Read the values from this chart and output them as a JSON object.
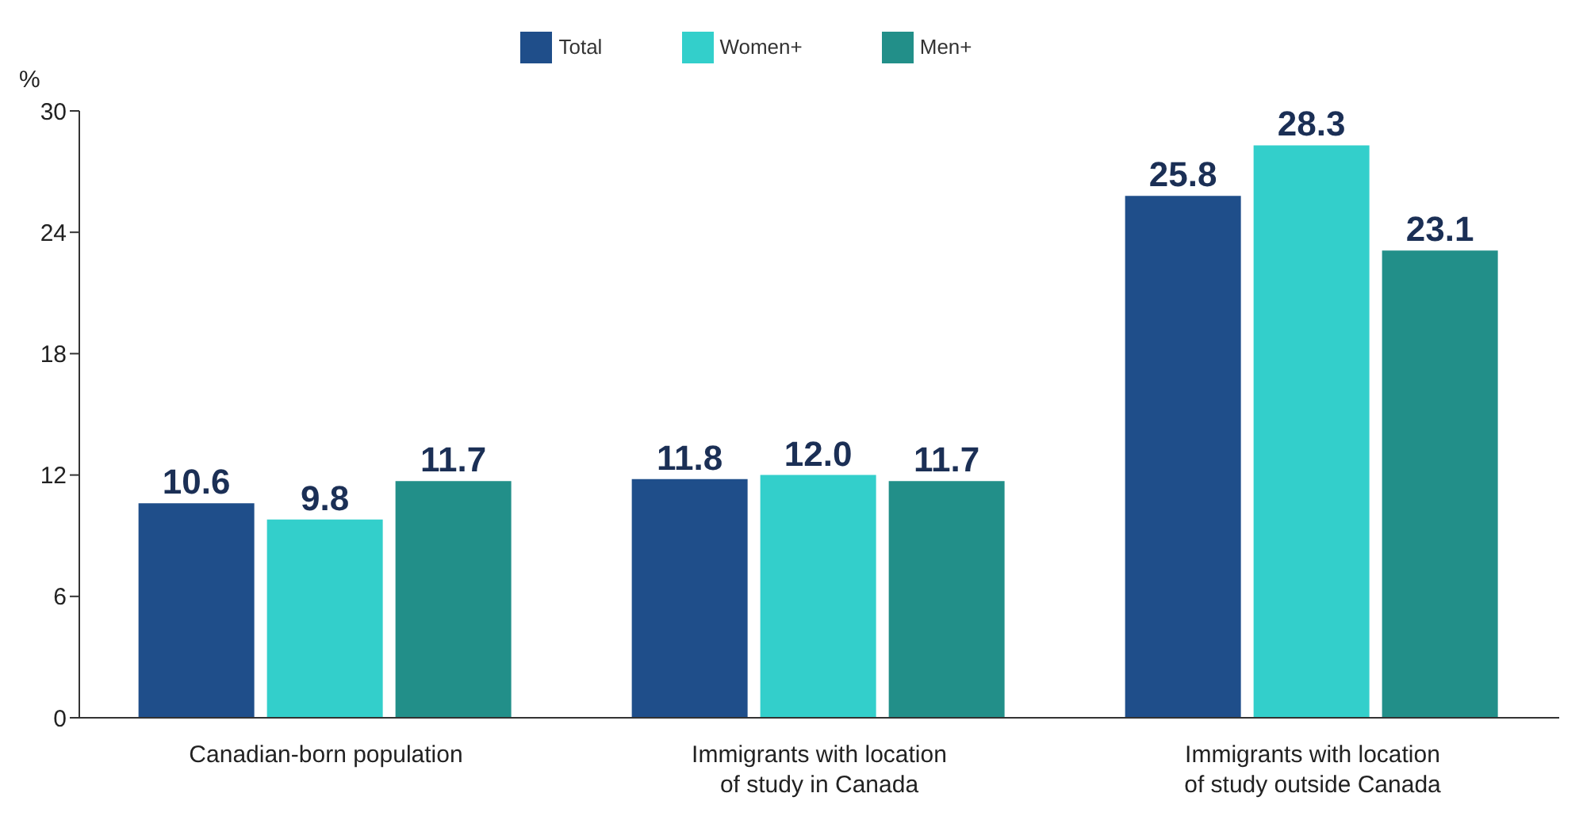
{
  "chart_data": {
    "type": "bar",
    "ylabel": "%",
    "categories": [
      "Canadian-born population",
      "Immigrants with location of study in Canada",
      "Immigrants with location of study outside Canada"
    ],
    "series": [
      {
        "name": "Total",
        "color": "#1f4e8a",
        "values": [
          10.6,
          11.8,
          25.8
        ],
        "value_labels": [
          "10.6",
          "11.8",
          "25.8"
        ]
      },
      {
        "name": "Women+",
        "color": "#33cfcb",
        "values": [
          9.8,
          12.0,
          28.3
        ],
        "value_labels": [
          "9.8",
          "12.0",
          "28.3"
        ]
      },
      {
        "name": "Men+",
        "color": "#228f89",
        "values": [
          11.7,
          11.7,
          23.1
        ],
        "value_labels": [
          "11.7",
          "11.7",
          "23.1"
        ]
      }
    ],
    "ylim": [
      0,
      30
    ],
    "yticks": [
      0,
      6,
      12,
      18,
      24,
      30
    ],
    "grid": false,
    "legend": "top"
  }
}
